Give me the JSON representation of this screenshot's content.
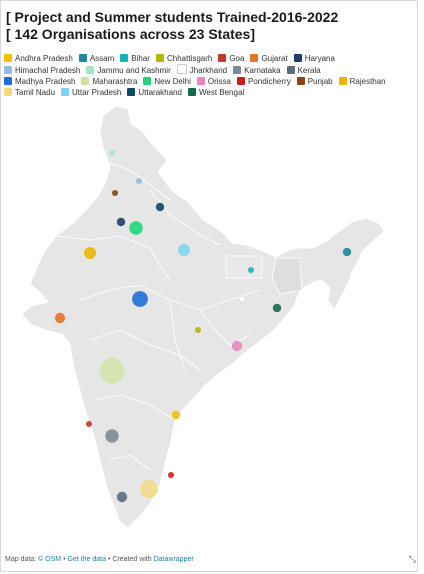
{
  "title": {
    "line1": "[ Project and Summer students Trained-2016-2022",
    "line2": "[ 142 Organisations across 23 States]"
  },
  "legend": [
    {
      "label": "Andhra Pradesh",
      "color": "#f2c00b"
    },
    {
      "label": "Assam",
      "color": "#1b8a99"
    },
    {
      "label": "Bihar",
      "color": "#15b4b4"
    },
    {
      "label": "Chhattisgarh",
      "color": "#b5b400"
    },
    {
      "label": "Goa",
      "color": "#c0392b"
    },
    {
      "label": "Gujarat",
      "color": "#e8722a"
    },
    {
      "label": "Haryana",
      "color": "#1d3f6e"
    },
    {
      "label": "Himachal Pradesh",
      "color": "#8fbde8"
    },
    {
      "label": "Jammu and Kashmir",
      "color": "#a8e6c8"
    },
    {
      "label": "Jharkhand",
      "color": "#ffffff"
    },
    {
      "label": "Karnataka",
      "color": "#7d8a99"
    },
    {
      "label": "Kerala",
      "color": "#5a6b7a"
    },
    {
      "label": "Madhya Pradesh",
      "color": "#1f6fd6"
    },
    {
      "label": "Maharashtra",
      "color": "#cfe3a0"
    },
    {
      "label": "New Delhi",
      "color": "#1fd679"
    },
    {
      "label": "Orissa",
      "color": "#e787c0"
    },
    {
      "label": "Pondicherry",
      "color": "#d11a1a"
    },
    {
      "label": "Punjab",
      "color": "#8a4513"
    },
    {
      "label": "Rajesthan",
      "color": "#f0b400"
    },
    {
      "label": "Tamil Nadu",
      "color": "#f7d877"
    },
    {
      "label": "Uttar Pradesh",
      "color": "#7dd4f0"
    },
    {
      "label": "Uttarakhand",
      "color": "#0d4a63"
    },
    {
      "label": "West Bengal",
      "color": "#0f6b4e"
    }
  ],
  "markers": [
    {
      "state": "Jammu and Kashmir",
      "color": "#a8e6c8",
      "value": 1
    },
    {
      "state": "Himachal Pradesh",
      "color": "#8fbde8",
      "value": 1
    },
    {
      "state": "Punjab",
      "color": "#8a4513",
      "value": 1
    },
    {
      "state": "Uttarakhand",
      "color": "#0d4a63",
      "value": 2
    },
    {
      "state": "Haryana",
      "color": "#1d3f6e",
      "value": 2
    },
    {
      "state": "New Delhi",
      "color": "#1fd679",
      "value": 5
    },
    {
      "state": "Rajesthan",
      "color": "#f0b400",
      "value": 4
    },
    {
      "state": "Uttar Pradesh",
      "color": "#7dd4f0",
      "value": 4
    },
    {
      "state": "Madhya Pradesh",
      "color": "#1f6fd6",
      "value": 7
    },
    {
      "state": "Bihar",
      "color": "#15b4b4",
      "value": 1
    },
    {
      "state": "Jharkhand",
      "color": "#ffffff",
      "value": 1
    },
    {
      "state": "Assam",
      "color": "#1b8a99",
      "value": 2
    },
    {
      "state": "West Bengal",
      "color": "#0f6b4e",
      "value": 2
    },
    {
      "state": "Gujarat",
      "color": "#e8722a",
      "value": 3
    },
    {
      "state": "Chhattisgarh",
      "color": "#b5b400",
      "value": 1
    },
    {
      "state": "Orissa",
      "color": "#e787c0",
      "value": 3
    },
    {
      "state": "Maharashtra",
      "color": "#cfe3a0",
      "value": 18
    },
    {
      "state": "Andhra Pradesh",
      "color": "#f2c00b",
      "value": 2
    },
    {
      "state": "Goa",
      "color": "#c0392b",
      "value": 1
    },
    {
      "state": "Karnataka",
      "color": "#7d8a99",
      "value": 5
    },
    {
      "state": "Pondicherry",
      "color": "#d11a1a",
      "value": 1
    },
    {
      "state": "Kerala",
      "color": "#5a6b7a",
      "value": 3
    },
    {
      "state": "Tamil Nadu",
      "color": "#f7d877",
      "value": 9
    }
  ],
  "footer": {
    "prefix": "Map data: ",
    "osm": "© OSM",
    "sep1": " • ",
    "get_data": "Get the data",
    "sep2": " • Created with ",
    "datawrapper": "Datawrapper"
  },
  "resize_icon": "resize-handle-icon"
}
